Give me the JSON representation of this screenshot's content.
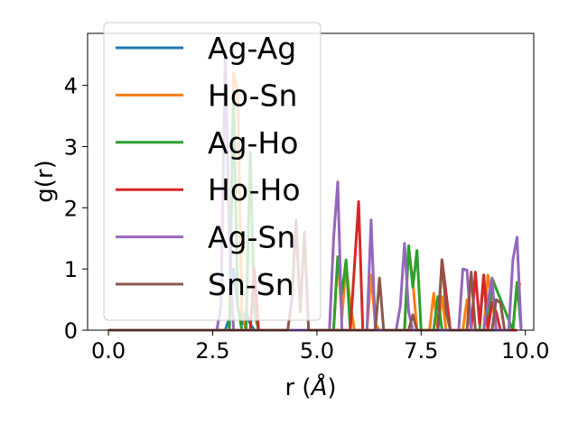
{
  "chart_data": {
    "type": "line",
    "xlabel": "r (",
    "xlabel_unit": "Å",
    "xlabel_close": ")",
    "ylabel": "g(r)",
    "xlim": [
      -0.5,
      10.2
    ],
    "ylim": [
      0,
      4.85
    ],
    "xticks": [
      0.0,
      2.5,
      5.0,
      7.5,
      10.0
    ],
    "xtick_labels": [
      "0.0",
      "2.5",
      "5.0",
      "7.5",
      "10.0"
    ],
    "yticks": [
      0,
      1,
      2,
      3,
      4
    ],
    "ytick_labels": [
      "0",
      "1",
      "2",
      "3",
      "4"
    ],
    "grid": false,
    "legend_position": "top-left",
    "series": [
      {
        "name": "Ag-Ag",
        "color": "#1f77b4",
        "x": [
          0.0,
          2.8,
          2.9,
          3.0,
          3.1,
          3.2,
          3.3,
          3.4,
          3.5,
          3.6,
          9.8
        ],
        "y": [
          0,
          0,
          0.2,
          1.0,
          0.4,
          0.1,
          0.3,
          0.1,
          0,
          0,
          0
        ]
      },
      {
        "name": "Ho-Sn",
        "color": "#ff7f0e",
        "x": [
          0.0,
          2.9,
          3.0,
          3.1,
          3.2,
          3.3,
          5.4,
          5.5,
          5.6,
          5.7,
          5.8,
          5.9,
          6.2,
          6.3,
          6.4,
          6.5,
          7.1,
          7.2,
          7.3,
          7.4,
          7.7,
          7.8,
          7.9,
          8.0,
          8.1,
          8.5,
          8.6,
          8.7,
          8.8,
          9.0,
          9.1,
          9.2,
          9.3,
          9.7,
          9.8,
          9.9
        ],
        "y": [
          0,
          0,
          4.2,
          3.9,
          0.3,
          0,
          0,
          1.2,
          0.2,
          1.1,
          0.4,
          0,
          0,
          0.9,
          0.1,
          0,
          0,
          1.35,
          0.8,
          0,
          0,
          0.6,
          0,
          0.55,
          0,
          0,
          0.5,
          0,
          0,
          0,
          0.9,
          0.5,
          0,
          0,
          0.75,
          0.75
        ]
      },
      {
        "name": "Ag-Ho",
        "color": "#2ca02c",
        "x": [
          0.0,
          2.9,
          3.0,
          3.1,
          3.2,
          3.3,
          3.4,
          3.5,
          3.6,
          5.4,
          5.5,
          5.6,
          5.7,
          5.8,
          7.1,
          7.2,
          7.3,
          7.4,
          7.5,
          7.8,
          7.9,
          8.0,
          8.1,
          8.9,
          9.0,
          9.1,
          9.2,
          9.7,
          9.8,
          9.9
        ],
        "y": [
          0,
          0,
          3.9,
          0.4,
          0,
          0,
          2.9,
          0.3,
          0,
          0,
          1.2,
          0.6,
          1.15,
          0,
          0,
          1.38,
          0.7,
          1.3,
          0,
          0,
          0.55,
          0,
          0,
          0,
          0.9,
          0,
          0.85,
          0,
          0.78,
          0
        ]
      },
      {
        "name": "Ho-Ho",
        "color": "#d62728",
        "x": [
          0.0,
          3.4,
          3.5,
          3.6,
          5.8,
          5.9,
          6.0,
          6.1,
          7.9,
          8.0,
          8.1,
          8.2,
          8.7,
          8.8,
          8.9,
          9.0,
          9.1,
          9.2,
          9.3,
          9.4,
          9.8
        ],
        "y": [
          0,
          0,
          1.0,
          0,
          0,
          1.05,
          2.1,
          0,
          0,
          1.15,
          0.6,
          0,
          0,
          0.95,
          0.1,
          0.9,
          0,
          0.45,
          0.3,
          0,
          0
        ]
      },
      {
        "name": "Ag-Sn",
        "color": "#9467bd",
        "x": [
          0.0,
          2.6,
          2.7,
          2.8,
          2.9,
          3.0,
          5.3,
          5.4,
          5.5,
          5.6,
          6.2,
          6.3,
          6.4,
          6.5,
          6.9,
          7.0,
          7.1,
          7.2,
          7.3,
          7.4,
          8.4,
          8.5,
          8.6,
          8.7,
          9.0,
          9.1,
          9.2,
          9.3,
          9.6,
          9.7,
          9.8,
          9.9
        ],
        "y": [
          0,
          0,
          0.4,
          4.55,
          1.5,
          0,
          0,
          1.5,
          2.42,
          0,
          0,
          1.8,
          0,
          0,
          0,
          0.4,
          1.42,
          0.3,
          0,
          0,
          0,
          1.0,
          0.98,
          0,
          0,
          0.45,
          0.85,
          0,
          0,
          1.15,
          1.52,
          0
        ]
      },
      {
        "name": "Sn-Sn",
        "color": "#8c564b",
        "x": [
          0.0,
          4.3,
          4.4,
          4.5,
          4.6,
          4.7,
          4.8,
          6.4,
          6.5,
          6.6,
          7.2,
          7.3,
          7.4,
          7.9,
          8.0,
          8.1,
          8.2,
          8.6,
          8.7,
          8.8,
          9.2,
          9.3,
          9.4,
          9.5
        ],
        "y": [
          0,
          0,
          0.5,
          1.8,
          0.3,
          1.6,
          0,
          0,
          0.85,
          0,
          0,
          0.25,
          0,
          0,
          1.15,
          0.3,
          0,
          0,
          0.95,
          0,
          0,
          0.5,
          0.45,
          0
        ]
      }
    ]
  }
}
